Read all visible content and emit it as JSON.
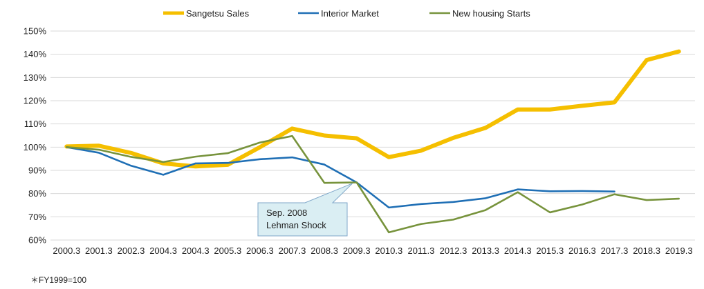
{
  "chart_data": {
    "type": "line",
    "categories": [
      "2000.3",
      "2001.3",
      "2002.3",
      "2004.3",
      "2004.3",
      "2005.3",
      "2006.3",
      "2007.3",
      "2008.3",
      "2009.3",
      "2010.3",
      "2011.3",
      "2012.3",
      "2013.3",
      "2014.3",
      "2015.3",
      "2016.3",
      "2017.3",
      "2018.3",
      "2019.3"
    ],
    "ylim": [
      60,
      150
    ],
    "yticks": [
      "60%",
      "70%",
      "80%",
      "90%",
      "100%",
      "110%",
      "120%",
      "130%",
      "140%",
      "150%"
    ],
    "grid": true,
    "legend_position": "top",
    "series": [
      {
        "name": "Sangetsu Sales",
        "color": "#F5BF00",
        "values": [
          100.3,
          100.6,
          97.5,
          93.0,
          91.7,
          92.4,
          100.0,
          108.0,
          105.0,
          103.8,
          95.7,
          98.5,
          104.0,
          108.3,
          116.2,
          116.2,
          117.8,
          119.3,
          137.5,
          141.2
        ]
      },
      {
        "name": "Interior Market",
        "color": "#1F6FB5",
        "values": [
          100.0,
          97.6,
          92.0,
          88.1,
          93.0,
          93.2,
          94.8,
          95.6,
          92.5,
          84.8,
          74.0,
          75.5,
          76.4,
          78.0,
          81.8,
          81.0,
          81.1,
          80.9,
          null,
          null
        ]
      },
      {
        "name": "New housing Starts",
        "color": "#77933C",
        "values": [
          100.0,
          98.9,
          95.8,
          93.6,
          95.9,
          97.4,
          102.0,
          104.8,
          84.6,
          84.8,
          63.3,
          66.9,
          68.8,
          72.9,
          80.6,
          71.9,
          75.3,
          79.7,
          77.2,
          77.8
        ]
      }
    ],
    "annotation": {
      "lines": [
        "Sep. 2008",
        "Lehman Shock"
      ],
      "x_index": 9,
      "y": 85
    }
  },
  "footnote": "＊FY1999=100"
}
